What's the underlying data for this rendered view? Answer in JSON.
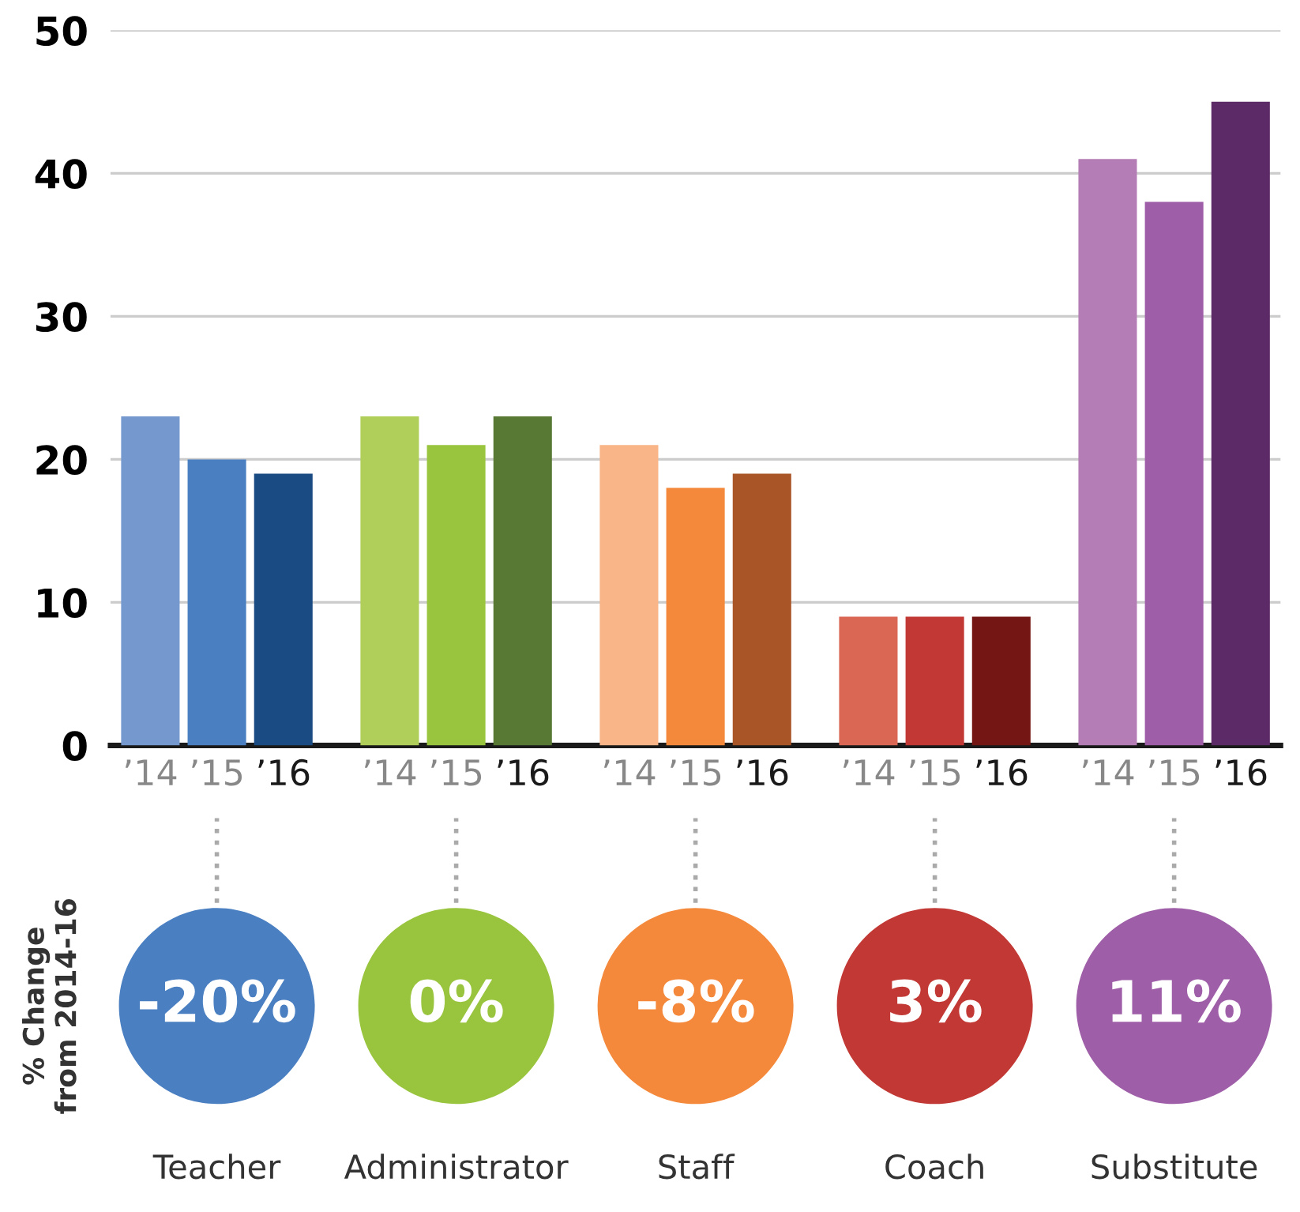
{
  "chart_data": {
    "type": "bar",
    "categories": [
      "’14",
      "’15",
      "’16",
      "’14",
      "’15",
      "’16",
      "’14",
      "’15",
      "’16",
      "’14",
      "’15",
      "’16",
      "’14",
      "’15",
      "’16"
    ],
    "values": [
      23,
      20,
      19,
      23,
      21,
      23,
      21,
      18,
      19,
      9,
      9,
      9,
      41,
      38,
      45
    ],
    "colors": [
      "#7599cf",
      "#4a7fc1",
      "#1a4b82",
      "#afcf5a",
      "#99c43d",
      "#587934",
      "#f9b487",
      "#f4893b",
      "#a95527",
      "#d96754",
      "#c23834",
      "#741613",
      "#b47db5",
      "#9f5fa8",
      "#5c2a66"
    ],
    "ylim": [
      0,
      50
    ],
    "yticks": [
      0,
      10,
      20,
      30,
      40,
      50
    ],
    "grid": "y",
    "annotations": [
      "% Change\nfrom 2014-16",
      "-20%",
      "0%",
      "-8%",
      "3%",
      "11%",
      "Teacher",
      "Administrator",
      "Staff",
      "Coach",
      "Substitute"
    ]
  }
}
